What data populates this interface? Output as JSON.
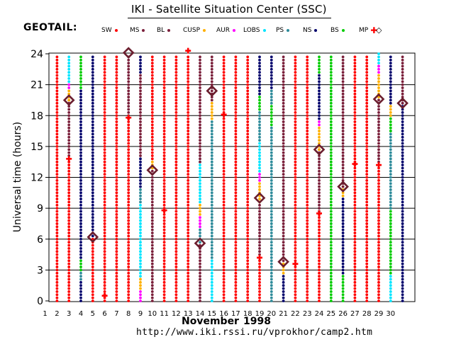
{
  "page": {
    "title": "IKI - Satellite Situation Center (SSC)",
    "satellite": "GEOTAIL:",
    "source_url": "http://www.iki.rssi.ru/vprokhor/camp2.htm"
  },
  "legend": [
    {
      "label": "SW",
      "color": "#ff0000",
      "marker": "dot"
    },
    {
      "label": "MS",
      "color": "#7a1f3a",
      "marker": "dot"
    },
    {
      "label": "BL",
      "color": "#7a1f3a",
      "marker": "dot"
    },
    {
      "label": "CUSP",
      "color": "#ffb000",
      "marker": "dot"
    },
    {
      "label": "AUR",
      "color": "#ff00ff",
      "marker": "dot"
    },
    {
      "label": "LOBS",
      "color": "#00e5ff",
      "marker": "dot"
    },
    {
      "label": "PS",
      "color": "#2e8b9a",
      "marker": "dot"
    },
    {
      "label": "NS",
      "color": "#00006b",
      "marker": "dot"
    },
    {
      "label": "BS",
      "color": "#00cc00",
      "marker": "dot"
    },
    {
      "label": "MP",
      "color": "#ff0000",
      "marker": "plus"
    },
    {
      "label": "",
      "color": "#000000",
      "marker": "diamond"
    }
  ],
  "chart_data": {
    "type": "scatter",
    "xlabel_month": "November",
    "xlabel_year": "1998",
    "ylabel": "Universal time (hours)",
    "x_ticks": [
      "1",
      "2",
      "3",
      "4",
      "5",
      "6",
      "7",
      "8",
      "9",
      "10",
      "11",
      "12",
      "13",
      "14",
      "15",
      "16",
      "17",
      "18",
      "19",
      "20",
      "21",
      "22",
      "23",
      "24",
      "25",
      "26",
      "27",
      "28",
      "29",
      "30"
    ],
    "y_ticks": [
      "0",
      "3",
      "6",
      "9",
      "12",
      "15",
      "18",
      "21",
      "24"
    ],
    "xlim": [
      1,
      31
    ],
    "ylim": [
      0,
      24
    ],
    "grid": "horizontal",
    "columns": [
      {
        "day": 2,
        "segments": [
          [
            "SW",
            0,
            24
          ]
        ]
      },
      {
        "day": 3,
        "segments": [
          [
            "SW",
            0,
            13.8
          ],
          [
            "MS",
            13.8,
            19.5
          ],
          [
            "CUSP",
            19.5,
            20.5
          ],
          [
            "AUR",
            20.5,
            21.2
          ],
          [
            "LOBS",
            21.2,
            24
          ]
        ]
      },
      {
        "day": 4,
        "segments": [
          [
            "NS",
            0,
            2
          ],
          [
            "PS",
            2,
            3
          ],
          [
            "BS",
            3,
            4
          ],
          [
            "NS",
            4,
            20.5
          ],
          [
            "BS",
            20.5,
            24
          ]
        ]
      },
      {
        "day": 5,
        "segments": [
          [
            "SW",
            0,
            6.2
          ],
          [
            "NS",
            6.2,
            24
          ]
        ]
      },
      {
        "day": 6,
        "segments": [
          [
            "SW",
            0,
            24
          ]
        ]
      },
      {
        "day": 7,
        "segments": [
          [
            "SW",
            0,
            24
          ]
        ]
      },
      {
        "day": 8,
        "segments": [
          [
            "SW",
            0,
            17.8
          ],
          [
            "MS",
            17.8,
            24
          ]
        ]
      },
      {
        "day": 9,
        "segments": [
          [
            "AUR",
            0,
            1
          ],
          [
            "CUSP",
            1,
            2.2
          ],
          [
            "LOBS",
            2.2,
            9.5
          ],
          [
            "PS",
            9.5,
            11
          ],
          [
            "NS",
            11,
            14
          ],
          [
            "MS",
            14,
            22
          ],
          [
            "NS",
            22,
            24
          ]
        ]
      },
      {
        "day": 10,
        "segments": [
          [
            "MS",
            0,
            12.7
          ],
          [
            "CUSP",
            12.7,
            13.7
          ],
          [
            "SW",
            13.7,
            24
          ]
        ]
      },
      {
        "day": 11,
        "segments": [
          [
            "SW",
            0,
            24
          ]
        ]
      },
      {
        "day": 12,
        "segments": [
          [
            "SW",
            0,
            24
          ]
        ]
      },
      {
        "day": 13,
        "segments": [
          [
            "SW",
            0,
            24
          ]
        ]
      },
      {
        "day": 14,
        "segments": [
          [
            "MS",
            0,
            5.6
          ],
          [
            "PS",
            5.6,
            7
          ],
          [
            "AUR",
            7,
            8.2
          ],
          [
            "CUSP",
            8.2,
            9.5
          ],
          [
            "LOBS",
            9.5,
            13.5
          ],
          [
            "MS",
            13.5,
            24
          ]
        ]
      },
      {
        "day": 15,
        "segments": [
          [
            "LOBS",
            0,
            4
          ],
          [
            "PS",
            4,
            17.5
          ],
          [
            "CUSP",
            17.5,
            19.3
          ],
          [
            "MS",
            19.3,
            24
          ]
        ]
      },
      {
        "day": 16,
        "segments": [
          [
            "SW",
            0,
            24
          ]
        ]
      },
      {
        "day": 17,
        "segments": [
          [
            "SW",
            0,
            24
          ]
        ]
      },
      {
        "day": 18,
        "segments": [
          [
            "SW",
            0,
            24
          ]
        ]
      },
      {
        "day": 19,
        "segments": [
          [
            "SW",
            0,
            4.2
          ],
          [
            "MS",
            4.2,
            9.5
          ],
          [
            "CUSP",
            9.5,
            11.5
          ],
          [
            "AUR",
            11.5,
            12.5
          ],
          [
            "LOBS",
            12.5,
            15.5
          ],
          [
            "PS",
            15.5,
            18.5
          ],
          [
            "BS",
            18.5,
            20
          ],
          [
            "NS",
            20,
            24
          ]
        ]
      },
      {
        "day": 20,
        "segments": [
          [
            "PS",
            0,
            17
          ],
          [
            "BS",
            17,
            19
          ],
          [
            "PS",
            19,
            20.5
          ],
          [
            "NS",
            20.5,
            24
          ]
        ]
      },
      {
        "day": 21,
        "segments": [
          [
            "NS",
            0,
            2.5
          ],
          [
            "CUSP",
            2.5,
            3.7
          ],
          [
            "MS",
            3.7,
            24
          ]
        ]
      },
      {
        "day": 22,
        "segments": [
          [
            "SW",
            0,
            24
          ]
        ]
      },
      {
        "day": 23,
        "segments": [
          [
            "SW",
            0,
            24
          ]
        ]
      },
      {
        "day": 24,
        "segments": [
          [
            "SW",
            0,
            8.5
          ],
          [
            "MS",
            8.5,
            14.7
          ],
          [
            "CUSP",
            14.7,
            17
          ],
          [
            "AUR",
            17,
            17.5
          ],
          [
            "NS",
            17.5,
            22
          ],
          [
            "BS",
            22,
            24
          ]
        ]
      },
      {
        "day": 25,
        "segments": [
          [
            "BS",
            0,
            24
          ]
        ]
      },
      {
        "day": 26,
        "segments": [
          [
            "BS",
            0,
            2.5
          ],
          [
            "NS",
            2.5,
            10
          ],
          [
            "CUSP",
            10,
            11.1
          ],
          [
            "MS",
            11.1,
            24
          ]
        ]
      },
      {
        "day": 27,
        "segments": [
          [
            "SW",
            0,
            24
          ]
        ]
      },
      {
        "day": 28,
        "segments": [
          [
            "SW",
            0,
            24
          ]
        ]
      },
      {
        "day": 29,
        "segments": [
          [
            "SW",
            0,
            13.2
          ],
          [
            "MS",
            13.2,
            19.6
          ],
          [
            "CUSP",
            19.6,
            22
          ],
          [
            "AUR",
            22,
            23
          ],
          [
            "LOBS",
            23,
            24
          ]
        ]
      },
      {
        "day": 30,
        "segments": [
          [
            "LOBS",
            0,
            2.5
          ],
          [
            "BS",
            2.5,
            9
          ],
          [
            "PS",
            9,
            16.5
          ],
          [
            "BS",
            16.5,
            18
          ],
          [
            "CUSP",
            18,
            19.2
          ],
          [
            "NS",
            19.2,
            24
          ]
        ]
      },
      {
        "day": 31,
        "segments": [
          [
            "NS",
            0,
            19.2
          ],
          [
            "MS",
            19.2,
            24
          ]
        ]
      }
    ],
    "mp_crossings": [
      {
        "day": 3,
        "ut": 13.8
      },
      {
        "day": 6,
        "ut": 0.5
      },
      {
        "day": 8,
        "ut": 17.8
      },
      {
        "day": 11,
        "ut": 8.8
      },
      {
        "day": 13,
        "ut": 24.3
      },
      {
        "day": 16,
        "ut": 18.1
      },
      {
        "day": 19,
        "ut": 4.2
      },
      {
        "day": 22,
        "ut": 3.6
      },
      {
        "day": 24,
        "ut": 8.5
      },
      {
        "day": 27,
        "ut": 13.3
      },
      {
        "day": 29,
        "ut": 13.2
      }
    ],
    "bs_crossings": [
      {
        "day": 3,
        "ut": 19.5
      },
      {
        "day": 5,
        "ut": 6.2
      },
      {
        "day": 8,
        "ut": 24.1
      },
      {
        "day": 10,
        "ut": 12.7
      },
      {
        "day": 14,
        "ut": 5.6
      },
      {
        "day": 15,
        "ut": 20.4
      },
      {
        "day": 19,
        "ut": 10.0
      },
      {
        "day": 21,
        "ut": 3.8
      },
      {
        "day": 24,
        "ut": 14.7
      },
      {
        "day": 26,
        "ut": 11.1
      },
      {
        "day": 29,
        "ut": 19.6
      },
      {
        "day": 31,
        "ut": 19.2
      }
    ]
  }
}
